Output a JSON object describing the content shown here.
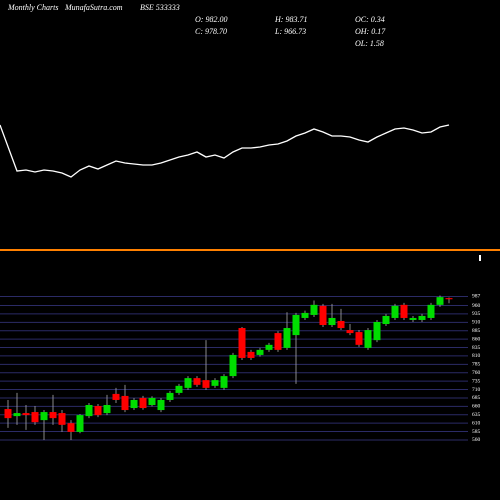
{
  "header": {
    "site": "Monthly Charts",
    "brand": "MunafaSutra.com",
    "symbol": "BSE 533333",
    "open": "O: 982.00",
    "close": "C: 978.70",
    "high": "H: 983.71",
    "low": "L: 966.73",
    "oc": "OC: 0.34",
    "oh": "OH: 0.17",
    "ol": "OL: 1.58"
  },
  "chart_data": [
    {
      "type": "line",
      "color": "#ffffff",
      "ylim": [
        0,
        100
      ],
      "values": [
        75,
        29,
        30,
        28,
        30,
        29,
        27,
        23,
        30,
        34,
        31,
        35,
        39,
        37,
        36,
        35,
        35,
        37,
        40,
        43,
        45,
        48,
        43,
        45,
        42,
        48,
        52,
        52,
        53,
        55,
        56,
        59,
        64,
        67,
        71,
        68,
        64,
        64,
        63,
        60,
        58,
        63,
        67,
        71,
        72,
        70,
        67,
        68,
        73,
        75
      ]
    },
    {
      "type": "candlestick",
      "up_color": "#00dd00",
      "down_color": "#ff0000",
      "grid": true,
      "grid_color": "#2b2b66",
      "ylim": [
        545,
        1005
      ],
      "yticks": [
        560,
        585,
        610,
        635,
        660,
        685,
        710,
        735,
        760,
        785,
        810,
        835,
        860,
        885,
        910,
        935,
        960,
        987
      ],
      "open": [
        652,
        631,
        640,
        643,
        619,
        643,
        640,
        610,
        584,
        631,
        661,
        640,
        697,
        691,
        655,
        685,
        664,
        649,
        679,
        700,
        715,
        744,
        738,
        721,
        715,
        750,
        893,
        822,
        813,
        828,
        878,
        834,
        872,
        923,
        932,
        959,
        902,
        914,
        887,
        881,
        834,
        857,
        905,
        923,
        962,
        917,
        917,
        923,
        962,
        982
      ],
      "high": [
        679,
        700,
        664,
        661,
        649,
        694,
        649,
        619,
        637,
        670,
        667,
        694,
        715,
        724,
        685,
        691,
        690,
        685,
        706,
        727,
        750,
        750,
        857,
        744,
        756,
        819,
        896,
        828,
        834,
        849,
        884,
        940,
        938,
        945,
        975,
        965,
        965,
        950,
        905,
        887,
        893,
        917,
        935,
        965,
        968,
        929,
        935,
        968,
        990,
        983.71
      ],
      "low": [
        596,
        605,
        590,
        605,
        560,
        605,
        584,
        560,
        580,
        625,
        628,
        634,
        670,
        643,
        649,
        650,
        660,
        643,
        673,
        694,
        709,
        718,
        709,
        715,
        709,
        744,
        798,
        798,
        808,
        822,
        822,
        828,
        727,
        917,
        926,
        896,
        896,
        887,
        872,
        837,
        828,
        851,
        899,
        917,
        917,
        911,
        911,
        917,
        956,
        966.73
      ],
      "close": [
        625,
        640,
        634,
        613,
        643,
        625,
        605,
        584,
        634,
        664,
        634,
        664,
        679,
        649,
        679,
        655,
        685,
        679,
        700,
        721,
        744,
        724,
        715,
        738,
        750,
        813,
        804,
        804,
        828,
        843,
        828,
        893,
        932,
        938,
        962,
        902,
        923,
        893,
        878,
        843,
        887,
        911,
        929,
        959,
        923,
        923,
        929,
        962,
        985,
        978.7
      ]
    }
  ]
}
